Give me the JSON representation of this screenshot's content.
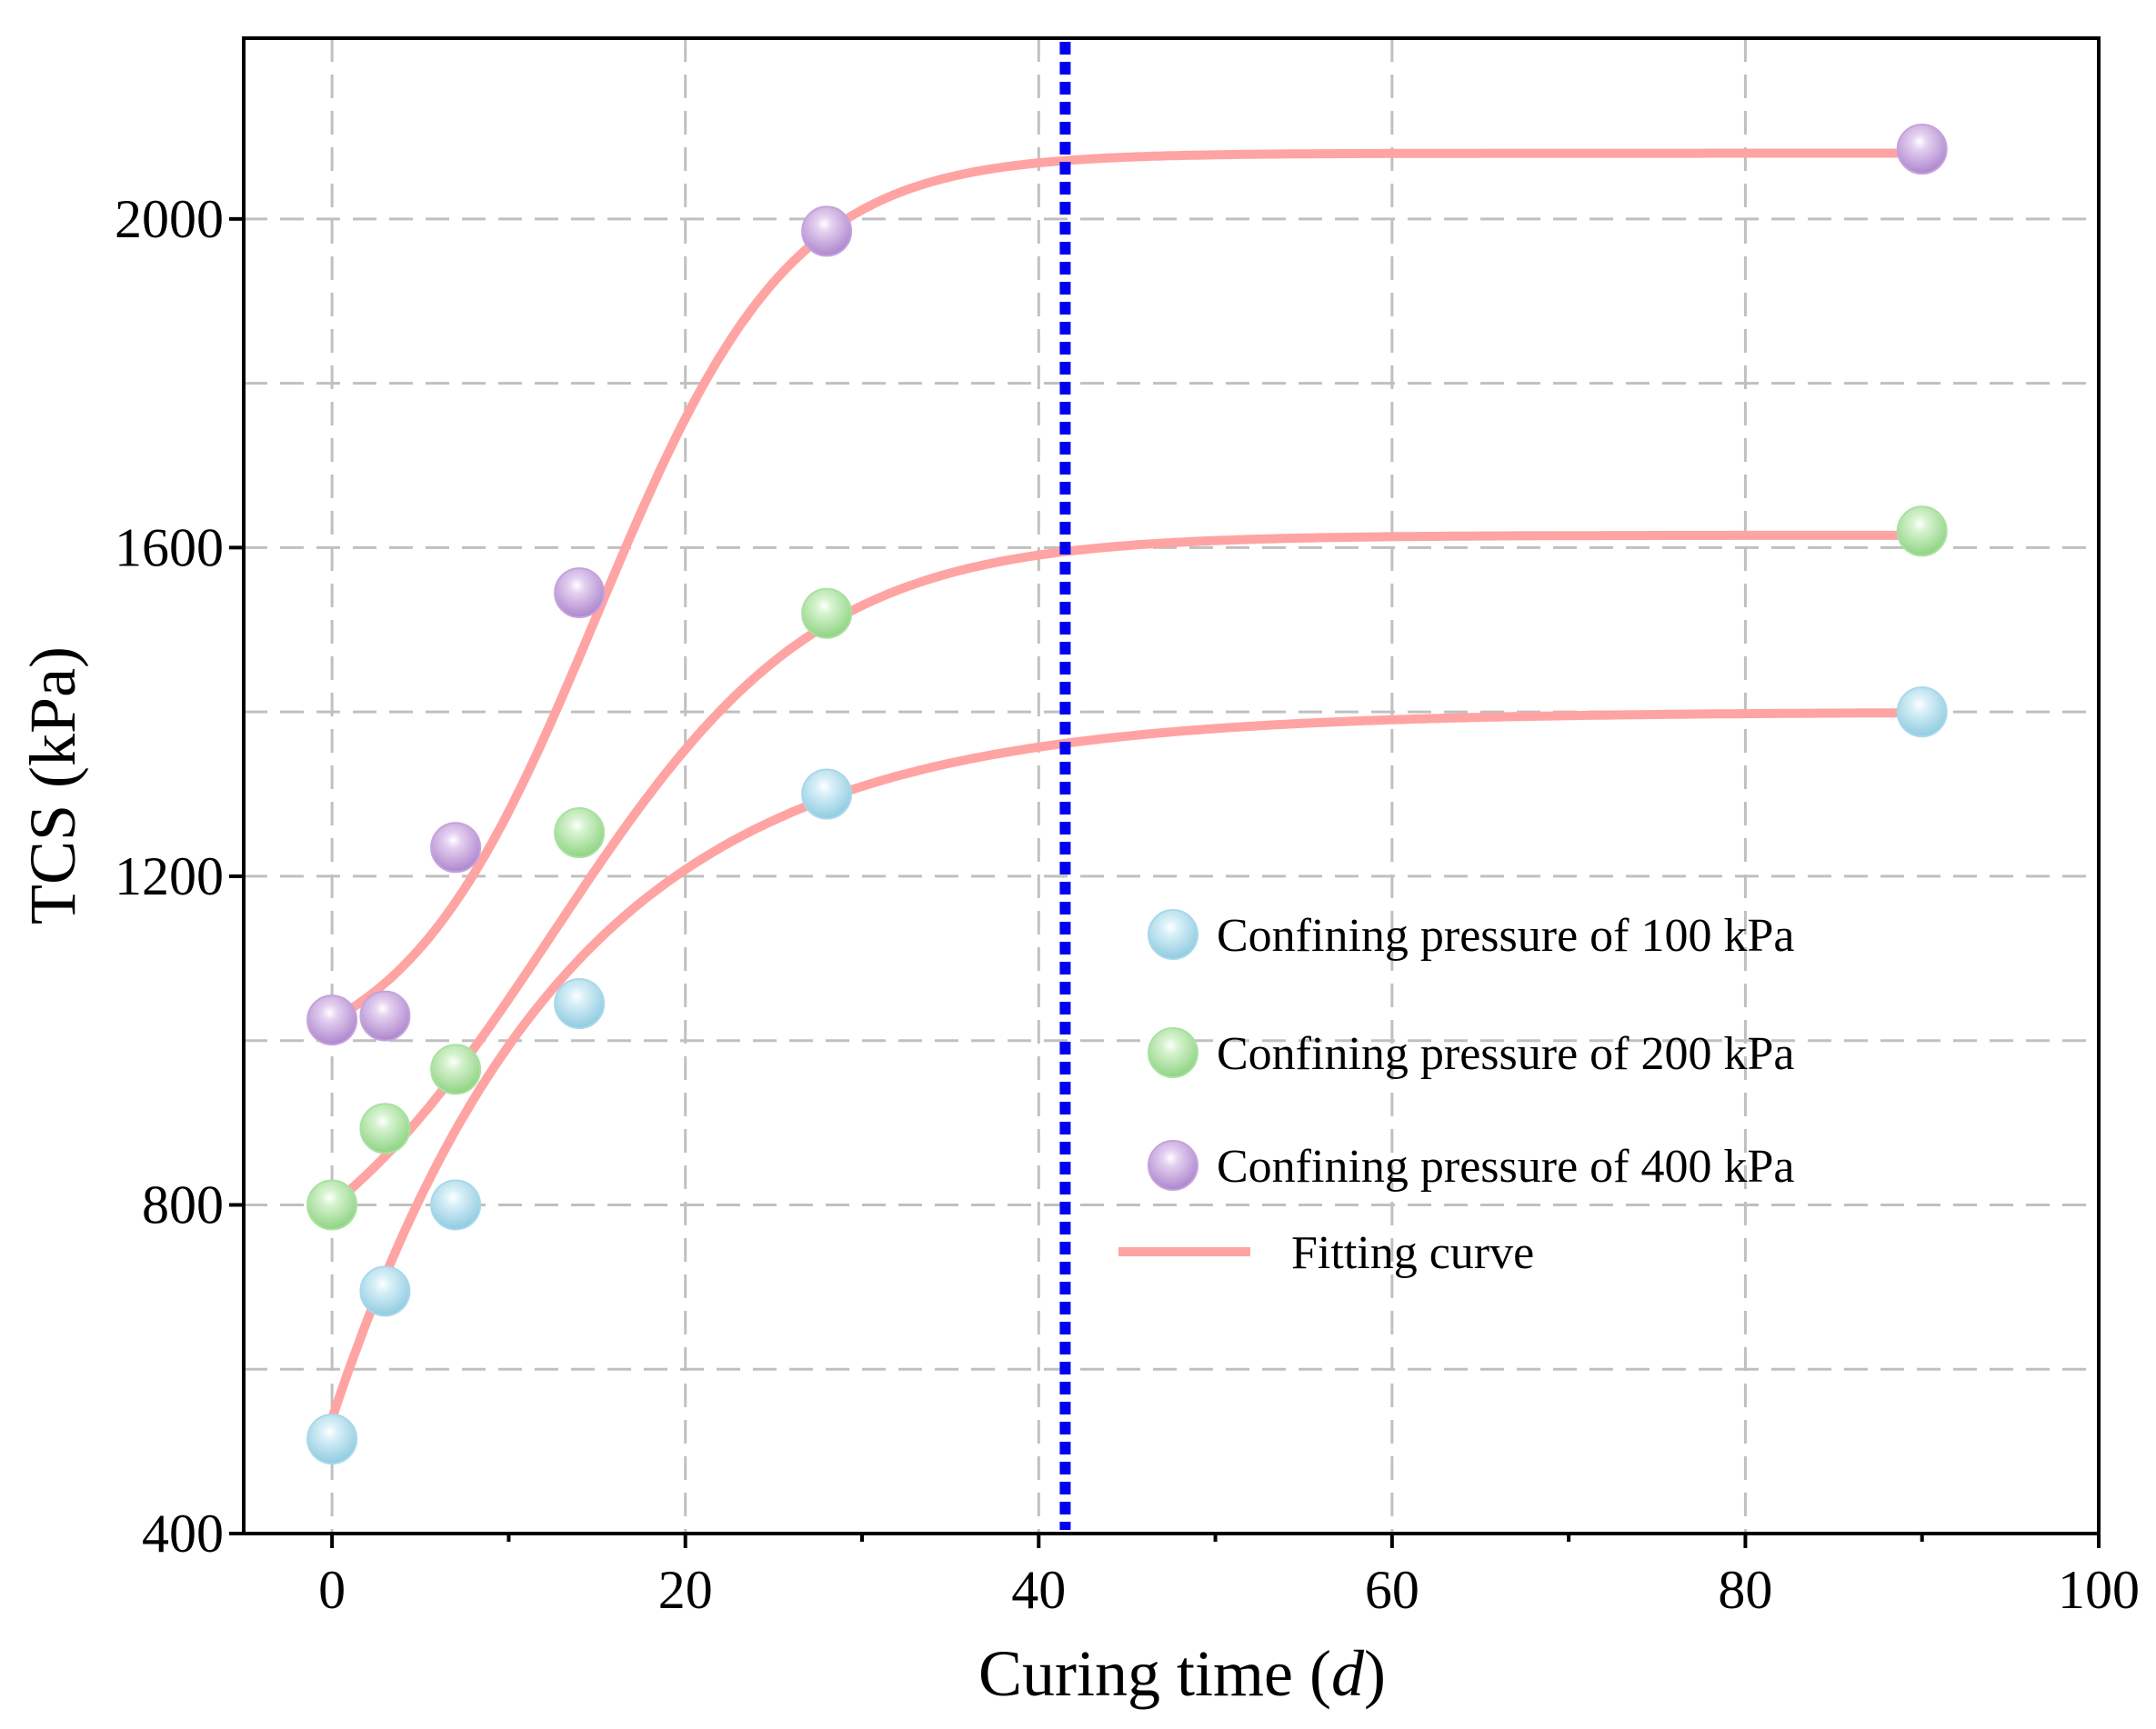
{
  "chart_data": {
    "type": "scatter",
    "title": "",
    "xlabel": "Curing time",
    "xlabel_var": "d",
    "ylabel": "TCS (kPa)",
    "xlim": [
      -5,
      100
    ],
    "ylim": [
      400,
      2220
    ],
    "x_ticks": [
      0,
      20,
      40,
      60,
      80,
      100
    ],
    "x_minor_ticks": [
      10,
      30,
      50,
      70,
      90
    ],
    "y_ticks": [
      400,
      800,
      1200,
      1600,
      2000
    ],
    "x_gridlines": [
      0,
      20,
      40,
      60,
      80
    ],
    "y_gridlines": [
      600,
      1000,
      1400,
      1800
    ],
    "grid": true,
    "legend_position": "center-right",
    "reference_line": {
      "x": 41.5,
      "color": "#0000ee",
      "style": "dotted"
    },
    "fit_color": "#ffa3a3",
    "series": [
      {
        "name": "Confining pressure of 100 kPa",
        "color": "#a8d8ea",
        "x": [
          0,
          3,
          7,
          14,
          28,
          90
        ],
        "y": [
          515,
          695,
          800,
          1045,
          1300,
          1400
        ],
        "fit": {
          "a": 1400,
          "b": 860,
          "k": 0.075,
          "x_range": [
            0,
            90
          ]
        }
      },
      {
        "name": "Confining pressure of 200 kPa",
        "color": "#a9e2a0",
        "x": [
          0,
          3,
          7,
          14,
          28,
          90
        ],
        "y": [
          800,
          893,
          965,
          1253,
          1520,
          1620
        ],
        "fit": {
          "a": 1615,
          "mid": 12.5,
          "w": 7.5,
          "x_range": [
            0,
            90
          ]
        }
      },
      {
        "name": "Confining pressure of 400 kPa",
        "color": "#c6a2dd",
        "x": [
          0,
          3,
          7,
          14,
          28,
          90
        ],
        "y": [
          1025,
          1030,
          1235,
          1545,
          1985,
          2085
        ],
        "fit": {
          "a": 2080,
          "mid": 15,
          "w": 5.5,
          "x_range": [
            0,
            90
          ]
        }
      }
    ],
    "legend": [
      {
        "label": "Confining pressure of 100 kPa",
        "kind": "marker",
        "color": "#a8d8ea"
      },
      {
        "label": "Confining pressure of 200 kPa",
        "kind": "marker",
        "color": "#a9e2a0"
      },
      {
        "label": "Confining pressure of 400 kPa",
        "kind": "marker",
        "color": "#c6a2dd"
      },
      {
        "label": "Fitting curve",
        "kind": "line",
        "color": "#ffa3a3"
      }
    ]
  }
}
